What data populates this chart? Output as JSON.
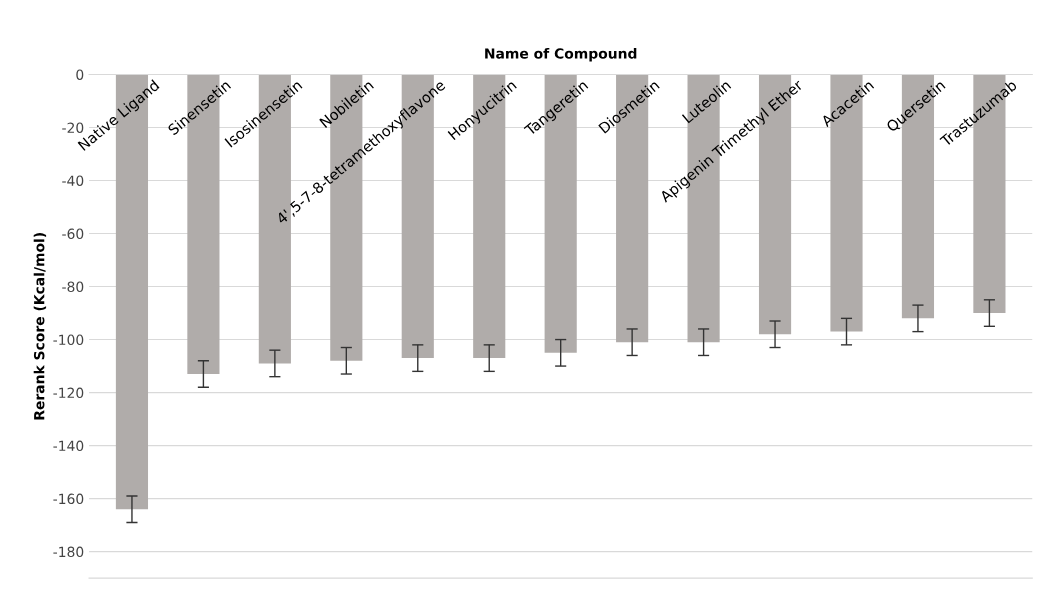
{
  "chart_data": {
    "type": "bar",
    "xlabel": "Name of Compound",
    "ylabel": "Rerank Score (Kcal/mol)",
    "categories": [
      "Native Ligand",
      "Sinensetin",
      "Isosinensetin",
      "Nobiletin",
      "4',5-7-8-tetramethoxyflavone",
      "Honyucitrin",
      "Tangeretin",
      "Diosmetin",
      "Luteolin",
      "Apigenin Trimethyl Ether",
      "Acacetin",
      "Quersetin",
      "Trastuzumab"
    ],
    "values": [
      -164,
      -113,
      -109,
      -108,
      -107,
      -107,
      -105,
      -101,
      -101,
      -98,
      -97,
      -92,
      -90
    ],
    "errors": [
      5,
      5,
      5,
      5,
      5,
      5,
      5,
      5,
      5,
      5,
      5,
      5,
      5
    ],
    "color": "#b0acaa",
    "ylim": [
      -190,
      0
    ],
    "yticks": [
      -180,
      -160,
      -140,
      -120,
      -100,
      -80,
      -60,
      -40,
      -20,
      0
    ],
    "grid": "y"
  }
}
